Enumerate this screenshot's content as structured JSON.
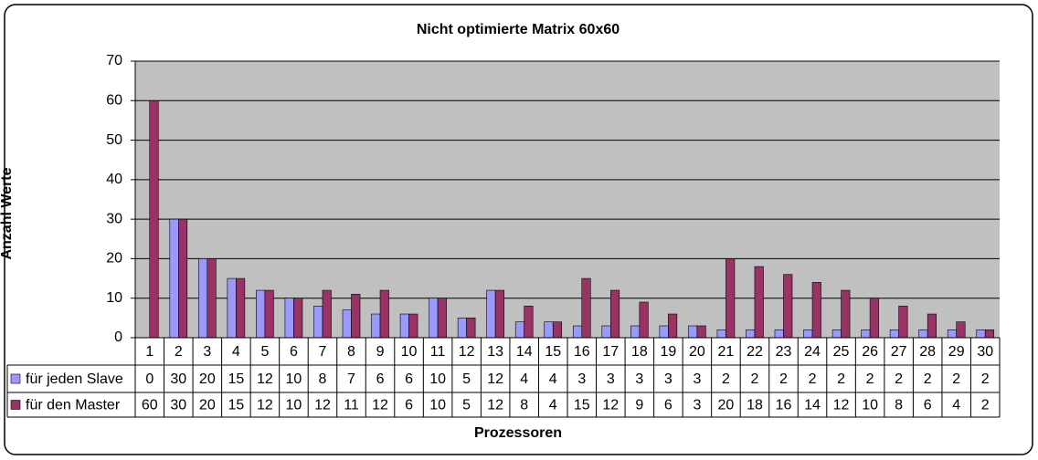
{
  "chart_data": {
    "type": "bar",
    "title": "Nicht optimierte Matrix 60x60",
    "x_label": "Prozessoren",
    "y_label": "Anzahl Werte",
    "categories": [
      "1",
      "2",
      "3",
      "4",
      "5",
      "6",
      "7",
      "8",
      "9",
      "10",
      "11",
      "12",
      "13",
      "14",
      "15",
      "16",
      "17",
      "18",
      "19",
      "20",
      "21",
      "22",
      "23",
      "24",
      "25",
      "26",
      "27",
      "28",
      "29",
      "30"
    ],
    "series": [
      {
        "name": "für jeden Slave",
        "color": "#9999ff",
        "values": [
          0,
          30,
          20,
          15,
          12,
          10,
          8,
          7,
          6,
          6,
          10,
          5,
          12,
          4,
          4,
          3,
          3,
          3,
          3,
          3,
          2,
          2,
          2,
          2,
          2,
          2,
          2,
          2,
          2,
          2
        ]
      },
      {
        "name": "für den Master",
        "color": "#993366",
        "values": [
          60,
          30,
          20,
          15,
          12,
          10,
          12,
          11,
          12,
          6,
          10,
          5,
          12,
          8,
          4,
          15,
          12,
          9,
          6,
          3,
          20,
          18,
          16,
          14,
          12,
          10,
          8,
          6,
          4,
          2
        ]
      }
    ],
    "ylim": [
      0,
      70
    ],
    "yticks": [
      0,
      10,
      20,
      30,
      40,
      50,
      60,
      70
    ],
    "grid": true,
    "plot_background": "#c0c0c0"
  }
}
